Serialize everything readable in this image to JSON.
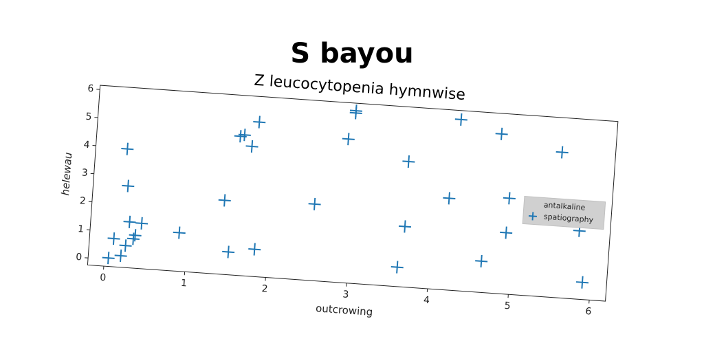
{
  "chart_data": {
    "type": "scatter",
    "title": "S bayou",
    "subtitle": "Z leucocytopenia hymnwise",
    "xlabel": "outcrowing",
    "ylabel": "helewau",
    "legend_title": "antalkaline",
    "legend_position": "right",
    "series": [
      {
        "name": "spatiography",
        "color": "#1f77b4",
        "x": [
          0.05,
          0.1,
          0.2,
          0.25,
          0.28,
          0.34,
          0.36,
          0.43,
          0.19,
          0.23,
          0.9,
          1.43,
          1.52,
          1.57,
          1.62,
          1.72,
          1.79,
          1.84,
          2.54,
          2.9,
          2.97,
          2.97,
          3.66,
          3.61,
          3.67,
          4.19,
          4.27,
          4.64,
          4.78,
          4.92,
          4.93,
          5.54,
          5.82,
          5.9
        ],
        "values": [
          0.05,
          0.75,
          0.16,
          0.53,
          1.38,
          0.79,
          0.92,
          1.36,
          3.96,
          2.65,
          1.12,
          2.38,
          0.56,
          4.69,
          4.75,
          4.36,
          5.24,
          0.72,
          2.47,
          4.86,
          5.88,
          5.8,
          4.21,
          0.44,
          1.9,
          3.01,
          5.83,
          0.86,
          5.42,
          1.93,
          3.16,
          4.92,
          2.18,
          0.36
        ]
      }
    ],
    "xlim": [
      -0.2,
      6.2
    ],
    "ylim": [
      -0.25,
      6.15
    ],
    "xticks": [
      0,
      1,
      2,
      3,
      4,
      5,
      6
    ],
    "yticks": [
      0,
      1,
      2,
      3,
      4,
      5,
      6
    ]
  }
}
